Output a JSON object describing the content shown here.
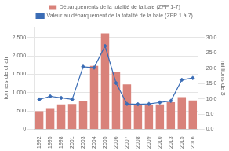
{
  "chart_data": {
    "type": "bar",
    "categories": [
      "1992",
      "1995",
      "1998",
      "2001",
      "2003",
      "2004",
      "2005",
      "2006",
      "2007",
      "2008",
      "2009",
      "2010",
      "2013",
      "2015",
      "2016"
    ],
    "series": [
      {
        "name": "Débarquements de la totalité de la baie (ZPP 1-7)",
        "type": "bar",
        "color": "#d9827a",
        "values": [
          490,
          580,
          680,
          690,
          760,
          1730,
          2620,
          1570,
          1230,
          660,
          670,
          680,
          740,
          880,
          790
        ]
      },
      {
        "name": "Valeur au débarquement de la totalité de la baie (ZPP 1 à 7)",
        "type": "line",
        "axis": "y2",
        "color": "#3a6cb5",
        "marker": "diamond",
        "line_style": "solid",
        "values": [
          9.8,
          10.8,
          10.3,
          9.8,
          20.5,
          20.2,
          27.3,
          15.2,
          8.3,
          8.2,
          8.3,
          8.8,
          9.3,
          16.2,
          16.8
        ]
      }
    ],
    "ylabel": "tonnes de chair",
    "y2label": "millions de $",
    "ylim": [
      0,
      2800
    ],
    "yticks": [
      0,
      500,
      {
        "value": 1000,
        "label": "1 000"
      },
      {
        "value": 1500,
        "label": "1 500"
      },
      {
        "value": 2000,
        "label": "2 000"
      },
      {
        "value": 2500,
        "label": "2 500"
      }
    ],
    "y2lim": [
      0,
      33.6
    ],
    "y2ticks": [
      {
        "value": 0.0,
        "label": "0,0"
      },
      {
        "value": 5.0,
        "label": "5,0"
      },
      {
        "value": 10.0,
        "label": "10,0"
      },
      {
        "value": 15.0,
        "label": "15,0"
      },
      {
        "value": 20.0,
        "label": "20,0"
      },
      {
        "value": 25.0,
        "label": "25,0"
      },
      {
        "value": 30.0,
        "label": "30,0"
      }
    ],
    "grid": true,
    "legend": "top"
  }
}
